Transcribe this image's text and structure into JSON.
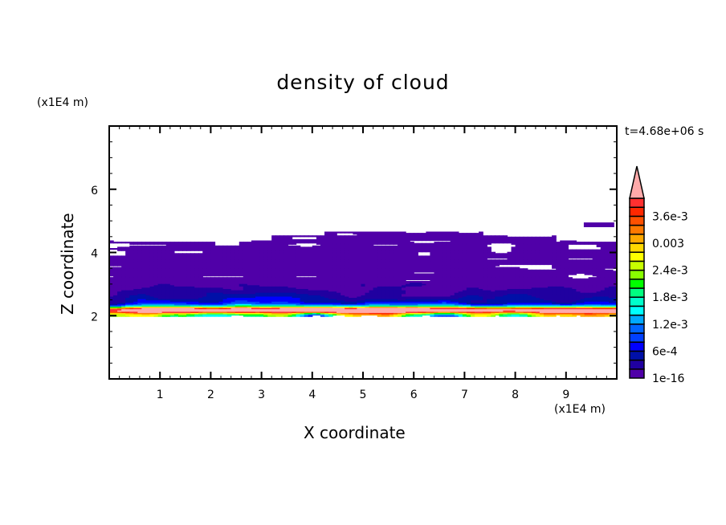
{
  "chart_data": {
    "type": "heatmap",
    "title": "density of cloud",
    "xlabel": "X coordinate",
    "ylabel": "Z coordinate",
    "x_unit": "(x1E4 m)",
    "y_unit": "(x1E4 m)",
    "time_label": "t=4.68e+06 s",
    "xlim": [
      0,
      10
    ],
    "ylim": [
      0,
      8
    ],
    "xticks": [
      "1",
      "2",
      "3",
      "4",
      "5",
      "6",
      "7",
      "8",
      "9"
    ],
    "yticks": [
      "2",
      "4",
      "6"
    ],
    "grid": false,
    "colorbar": {
      "placement": "right",
      "level_step": 0.0002,
      "min_level": 1e-16,
      "extend": "max",
      "labels": [
        "1e-16",
        "6e-4",
        "1.2e-3",
        "1.8e-3",
        "2.4e-3",
        "0.003",
        "3.6e-3"
      ],
      "colors": [
        "#5000a8",
        "#2000a0",
        "#0010a8",
        "#0000ff",
        "#0040ff",
        "#0064ff",
        "#00a8ff",
        "#00ffff",
        "#00ffcc",
        "#00ff80",
        "#00ff00",
        "#88ff00",
        "#c8ff00",
        "#ffff00",
        "#ffd800",
        "#ffa800",
        "#ff7800",
        "#ff5000",
        "#ff2800",
        "#ff3030"
      ],
      "over_color": "#ffaaaa"
    },
    "field_summary": {
      "cloud_layer_z": [
        2.0,
        4.3
      ],
      "peak_z": 2.15,
      "peak_value": 0.004
    }
  }
}
